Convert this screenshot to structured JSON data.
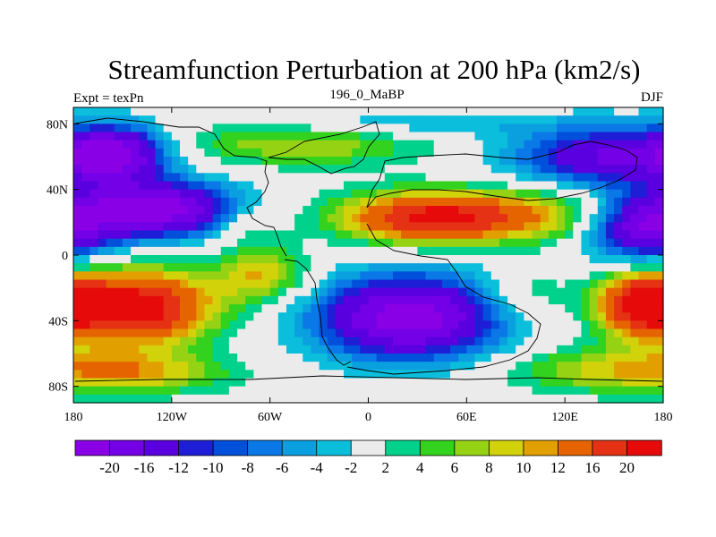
{
  "chart_data": {
    "type": "heatmap",
    "title": "Streamfunction Perturbation at 200 hPa (km2/s)",
    "left_label": "Expt = texPn",
    "center_label": "196_0_MaBP",
    "right_label": "DJF",
    "xlim": [
      -180,
      180
    ],
    "ylim": [
      -90,
      90
    ],
    "x_ticks": [
      -180,
      -120,
      -60,
      0,
      60,
      120,
      180
    ],
    "x_tick_labels": [
      "180",
      "120W",
      "60W",
      "0",
      "60E",
      "120E",
      "180"
    ],
    "y_ticks": [
      80,
      40,
      0,
      -40,
      -80
    ],
    "y_tick_labels": [
      "80N",
      "40N",
      "0",
      "40S",
      "80S"
    ],
    "levels": [
      -20,
      -16,
      -12,
      -10,
      -8,
      -6,
      -4,
      -2,
      2,
      4,
      6,
      8,
      10,
      12,
      16,
      20
    ],
    "colorbar_labels": [
      "-20",
      "-16",
      "-12",
      "-10",
      "-8",
      "-6",
      "-4",
      "-2",
      "2",
      "4",
      "6",
      "8",
      "10",
      "12",
      "16",
      "20"
    ],
    "colors": [
      "#8A00E6",
      "#7300E6",
      "#5A00E0",
      "#1E1ED6",
      "#0050DC",
      "#0A78E6",
      "#0AA0E0",
      "#0ABEDC",
      "#EBEBEB",
      "#00D28C",
      "#32D21E",
      "#96D214",
      "#D2D20A",
      "#E1A000",
      "#E66400",
      "#E63214",
      "#E60A0A"
    ],
    "centers": [
      {
        "lon": -155,
        "lat": 62,
        "sx": 22,
        "sy": 12,
        "amp": -20
      },
      {
        "lon": -130,
        "lat": 28,
        "sx": 36,
        "sy": 12,
        "amp": -23
      },
      {
        "lon": -140,
        "lat": -32,
        "sx": 32,
        "sy": 16,
        "amp": 23
      },
      {
        "lon": -140,
        "lat": -72,
        "sx": 40,
        "sy": 9,
        "amp": 9
      },
      {
        "lon": -40,
        "lat": 68,
        "sx": 55,
        "sy": 10,
        "amp": 8
      },
      {
        "lon": 20,
        "lat": 80,
        "sx": 60,
        "sy": 6,
        "amp": -5
      },
      {
        "lon": 40,
        "lat": 23,
        "sx": 40,
        "sy": 11,
        "amp": 22
      },
      {
        "lon": 110,
        "lat": 25,
        "sx": 28,
        "sy": 12,
        "amp": 7
      },
      {
        "lon": 25,
        "lat": -38,
        "sx": 40,
        "sy": 18,
        "amp": -23
      },
      {
        "lon": 145,
        "lat": 60,
        "sx": 40,
        "sy": 13,
        "amp": -16
      },
      {
        "lon": 170,
        "lat": 15,
        "sx": 25,
        "sy": 14,
        "amp": -18
      },
      {
        "lon": 168,
        "lat": -30,
        "sx": 20,
        "sy": 14,
        "amp": 22
      },
      {
        "lon": 145,
        "lat": -70,
        "sx": 45,
        "sy": 10,
        "amp": 8
      },
      {
        "lon": -65,
        "lat": -12,
        "sx": 20,
        "sy": 12,
        "amp": 10
      },
      {
        "lon": -75,
        "lat": 20,
        "sx": 15,
        "sy": 10,
        "amp": 5
      },
      {
        "lon": 95,
        "lat": -25,
        "sx": 20,
        "sy": 12,
        "amp": 5
      }
    ]
  }
}
